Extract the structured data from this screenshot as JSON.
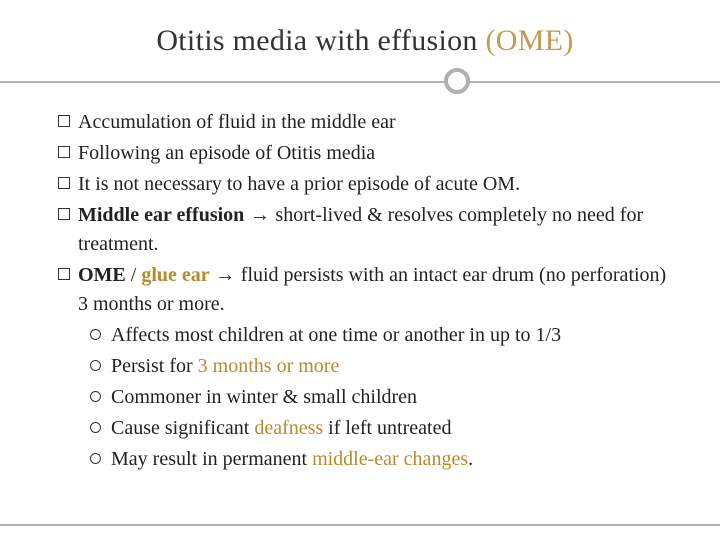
{
  "title": {
    "main": "Otitis media with effusion ",
    "abbr": "(OME)"
  },
  "colors": {
    "text": "#222222",
    "gold": "#b88a2e",
    "title_gold": "#c19b50",
    "divider": "#b0b0b0",
    "background": "#ffffff"
  },
  "typography": {
    "title_fontsize": 30,
    "body_fontsize": 20,
    "font_family": "Georgia"
  },
  "bullets": [
    {
      "runs": [
        {
          "t": "Accumulation of fluid in the middle ear"
        }
      ]
    },
    {
      "runs": [
        {
          "t": "Following an episode of Otitis media"
        }
      ]
    },
    {
      "runs": [
        {
          "t": "It is not necessary to have a prior episode of  acute OM."
        }
      ]
    },
    {
      "runs": [
        {
          "t": "Middle ear effusion",
          "bold": true
        },
        {
          "t": " → ",
          "arrow": true
        },
        {
          "t": "short-lived & resolves completely no need for treatment."
        }
      ]
    },
    {
      "runs": [
        {
          "t": "OME",
          "bold": true
        },
        {
          "t": " / "
        },
        {
          "t": "glue ear",
          "bold": true,
          "gold": true
        },
        {
          "t": " → ",
          "arrow": true
        },
        {
          "t": "fluid persists with an intact ear drum (no perforation) 3 months or more."
        }
      ],
      "subs": [
        {
          "runs": [
            {
              "t": "Affects most children at one time or another in up to 1/3"
            }
          ]
        },
        {
          "runs": [
            {
              "t": "Persist for "
            },
            {
              "t": "3 months or more",
              "gold": true
            }
          ]
        },
        {
          "runs": [
            {
              "t": "Commoner in winter & small children"
            }
          ]
        },
        {
          "runs": [
            {
              "t": "Cause significant "
            },
            {
              "t": "deafness",
              "gold": true
            },
            {
              "t": " if left untreated"
            }
          ]
        },
        {
          "runs": [
            {
              "t": "May result in permanent "
            },
            {
              "t": "middle-ear changes",
              "gold": true
            },
            {
              "t": "."
            }
          ]
        }
      ]
    }
  ]
}
